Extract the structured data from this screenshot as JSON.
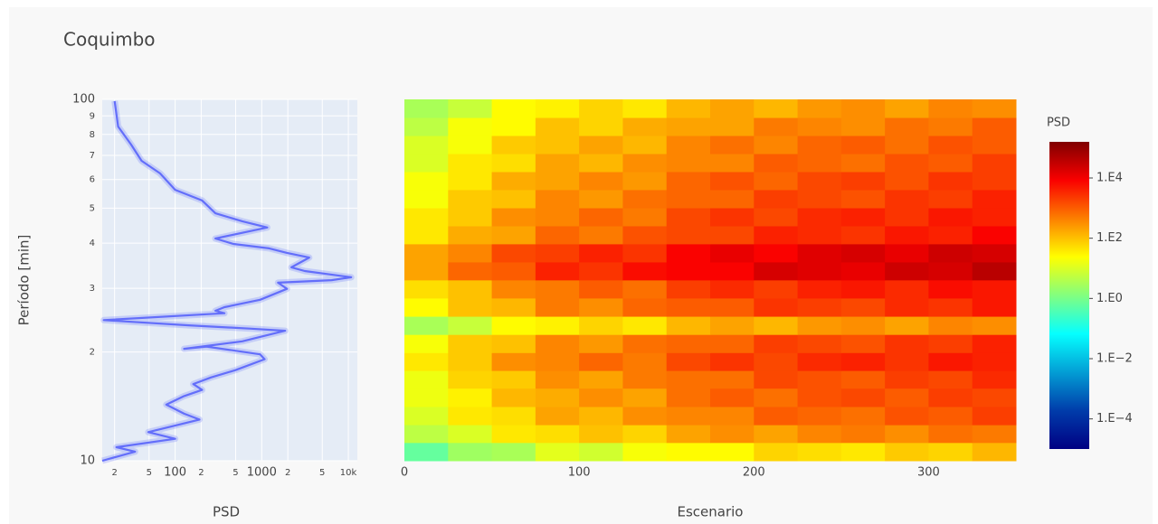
{
  "chart_data": [
    {
      "type": "line",
      "title": "Coquimbo",
      "ylabel": "Período [min]",
      "xlabel": "PSD",
      "xscale": "log",
      "yscale": "log",
      "grid": true,
      "xlim": [
        14.4,
        12700
      ],
      "ylim": [
        10,
        100
      ],
      "xticks": [
        {
          "value": 20,
          "label": "2"
        },
        {
          "value": 50,
          "label": "5"
        },
        100,
        {
          "value": 200,
          "label": "2"
        },
        {
          "value": 500,
          "label": "5"
        },
        1000,
        {
          "value": 2000,
          "label": "2"
        },
        {
          "value": 5000,
          "label": "5"
        },
        {
          "value": 10000,
          "label": "10k"
        }
      ],
      "yticks": [
        100,
        {
          "value": 90,
          "label": "9"
        },
        {
          "value": 80,
          "label": "8"
        },
        {
          "value": 70,
          "label": "7"
        },
        {
          "value": 60,
          "label": "6"
        },
        {
          "value": 50,
          "label": "5"
        },
        {
          "value": 40,
          "label": "4"
        },
        {
          "value": 30,
          "label": "3"
        },
        {
          "value": 20,
          "label": "2"
        },
        10
      ],
      "series": [
        {
          "color": "#636efa",
          "x": [
            20,
            22,
            31,
            41,
            67,
            100,
            205,
            292,
            596,
            1158,
            292,
            470,
            1216,
            1954,
            3532,
            2198,
            3141,
            10790,
            6397,
            1542,
            1954,
            957,
            371,
            292,
            371,
            15,
            144,
            755,
            1862,
            596,
            127,
            231,
            957,
            1079,
            493,
            259,
            162,
            205,
            127,
            79,
            127,
            191,
            49,
            100,
            21,
            34.5,
            14.4
          ],
          "y": [
            98.9,
            84.1,
            75.0,
            67.6,
            62.4,
            56.2,
            52.5,
            48.4,
            46.0,
            44.2,
            41.2,
            39.8,
            38.7,
            37.6,
            36.5,
            34.3,
            33.5,
            32.2,
            31.6,
            31.1,
            29.9,
            27.9,
            26.6,
            26.0,
            25.6,
            24.5,
            23.7,
            23.2,
            22.9,
            21.4,
            20.4,
            20.7,
            19.7,
            19.1,
            17.8,
            17.0,
            16.3,
            15.7,
            15.1,
            14.3,
            13.5,
            13.0,
            12.0,
            11.5,
            10.9,
            10.6,
            10
          ]
        }
      ]
    },
    {
      "type": "heatmap",
      "xlabel": "Escenario",
      "yscale": "log",
      "xlim": [
        0,
        350
      ],
      "ylim": [
        10,
        100
      ],
      "xticks": [
        0,
        100,
        200,
        300
      ],
      "colorscale": "Jet",
      "colorbar_title": "PSD",
      "zlim": [
        -5,
        5.2
      ],
      "zticks": [
        {
          "value": 4,
          "label": "1.E4"
        },
        {
          "value": 2,
          "label": "1.E2"
        },
        {
          "value": 0,
          "label": "1.E0"
        },
        {
          "value": -2,
          "label": "1.E−2"
        },
        {
          "value": -4,
          "label": "1.E−4"
        }
      ],
      "x": [
        12.5,
        37.5,
        62.5,
        87.5,
        112.5,
        137.5,
        162.5,
        187.5,
        212.5,
        237.5,
        262.5,
        287.5,
        312.5,
        337.5
      ],
      "y": [
        10.6,
        11.9,
        13.3,
        15.0,
        16.8,
        18.8,
        21.1,
        23.7,
        26.6,
        29.9,
        33.5,
        37.6,
        42.2,
        47.3,
        53.1,
        59.6,
        66.8,
        75.0,
        84.1,
        94.4
      ],
      "z": [
        [
          -0.2,
          0.4,
          0.5,
          1.1,
          0.9,
          1.3,
          1.4,
          1.4,
          1.8,
          1.7,
          1.6,
          1.9,
          1.8,
          2.1
        ],
        [
          0.7,
          1.0,
          1.6,
          1.7,
          2.0,
          1.8,
          2.3,
          2.5,
          2.3,
          2.6,
          2.7,
          2.5,
          2.8,
          2.7
        ],
        [
          1.0,
          1.6,
          1.7,
          2.3,
          2.1,
          2.5,
          2.6,
          2.6,
          3.0,
          2.9,
          2.8,
          3.1,
          3.0,
          3.3
        ],
        [
          1.2,
          1.5,
          2.1,
          2.2,
          2.5,
          2.3,
          2.8,
          3.0,
          2.8,
          3.1,
          3.2,
          3.0,
          3.3,
          3.2
        ],
        [
          1.2,
          1.8,
          1.9,
          2.5,
          2.3,
          2.7,
          2.8,
          2.8,
          3.2,
          3.1,
          3.0,
          3.3,
          3.2,
          3.5
        ],
        [
          1.6,
          1.9,
          2.5,
          2.6,
          2.9,
          2.7,
          3.2,
          3.4,
          3.2,
          3.5,
          3.6,
          3.4,
          3.7,
          3.6
        ],
        [
          1.3,
          1.9,
          2.0,
          2.6,
          2.4,
          2.8,
          2.9,
          2.9,
          3.3,
          3.2,
          3.1,
          3.4,
          3.3,
          3.6
        ],
        [
          0.5,
          0.8,
          1.4,
          1.5,
          1.8,
          1.6,
          2.1,
          2.3,
          2.1,
          2.4,
          2.5,
          2.3,
          2.6,
          2.5
        ],
        [
          1.4,
          2.0,
          2.1,
          2.7,
          2.5,
          2.9,
          3.0,
          3.0,
          3.4,
          3.3,
          3.2,
          3.5,
          3.4,
          3.7
        ],
        [
          1.7,
          2.0,
          2.6,
          2.7,
          3.0,
          2.8,
          3.3,
          3.5,
          3.3,
          3.6,
          3.7,
          3.5,
          3.8,
          3.7
        ],
        [
          2.3,
          2.9,
          3.0,
          3.6,
          3.4,
          3.8,
          3.9,
          3.9,
          4.3,
          4.2,
          4.1,
          4.4,
          4.3,
          4.6
        ],
        [
          2.3,
          2.6,
          3.2,
          3.3,
          3.6,
          3.4,
          3.9,
          4.1,
          3.9,
          4.2,
          4.3,
          4.1,
          4.4,
          4.3
        ],
        [
          1.6,
          2.2,
          2.3,
          2.9,
          2.7,
          3.1,
          3.2,
          3.2,
          3.6,
          3.5,
          3.4,
          3.7,
          3.6,
          3.9
        ],
        [
          1.6,
          1.9,
          2.5,
          2.6,
          2.9,
          2.7,
          3.2,
          3.4,
          3.2,
          3.5,
          3.6,
          3.4,
          3.7,
          3.6
        ],
        [
          1.3,
          1.9,
          2.0,
          2.6,
          2.4,
          2.8,
          2.9,
          2.9,
          3.3,
          3.2,
          3.1,
          3.4,
          3.3,
          3.6
        ],
        [
          1.3,
          1.6,
          2.2,
          2.3,
          2.6,
          2.4,
          2.9,
          3.1,
          2.9,
          3.2,
          3.3,
          3.1,
          3.4,
          3.3
        ],
        [
          1.0,
          1.6,
          1.7,
          2.3,
          2.1,
          2.5,
          2.6,
          2.6,
          3.0,
          2.9,
          2.8,
          3.1,
          3.0,
          3.3
        ],
        [
          1.0,
          1.3,
          1.9,
          2.0,
          2.3,
          2.1,
          2.6,
          2.8,
          2.6,
          2.9,
          3.0,
          2.8,
          3.1,
          3.0
        ],
        [
          0.7,
          1.3,
          1.4,
          2.0,
          1.8,
          2.2,
          2.3,
          2.3,
          2.7,
          2.6,
          2.5,
          2.8,
          2.7,
          3.0
        ],
        [
          0.5,
          0.8,
          1.4,
          1.5,
          1.8,
          1.6,
          2.1,
          2.3,
          2.1,
          2.4,
          2.5,
          2.3,
          2.6,
          2.5
        ]
      ]
    }
  ]
}
